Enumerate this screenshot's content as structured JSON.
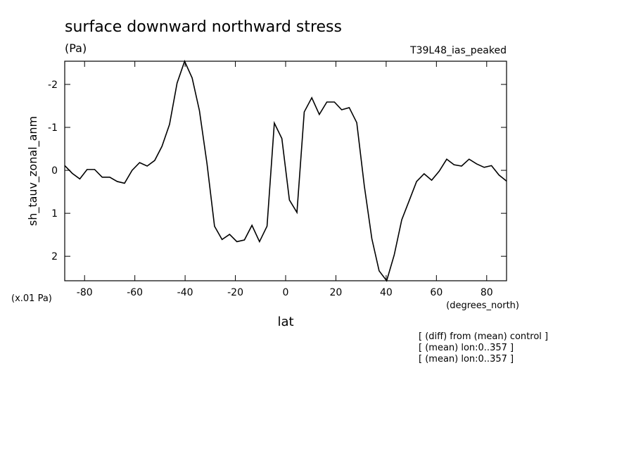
{
  "chart_data": {
    "type": "line",
    "title": "surface downward northward stress",
    "units": "(Pa)",
    "dataset": "T39L48_ias_peaked",
    "ylabel": "sh_tauv_zonal_anm",
    "yunits": "(x.01 Pa)",
    "xunits": "(degrees_north)",
    "xlabel": "lat",
    "notes": [
      "[ (diff) from (mean) control ]",
      "[ (mean) lon:0..357 ]",
      "[ (mean) lon:0..357 ]"
    ],
    "x": [
      -87.9,
      -84.9,
      -81.9,
      -79.0,
      -76.0,
      -73.0,
      -70.0,
      -67.0,
      -64.1,
      -61.1,
      -58.1,
      -55.1,
      -52.1,
      -49.2,
      -46.2,
      -43.2,
      -40.2,
      -37.2,
      -34.3,
      -31.3,
      -28.3,
      -25.3,
      -22.3,
      -19.4,
      -16.4,
      -13.4,
      -10.4,
      -7.4,
      -4.5,
      -1.5,
      1.5,
      4.5,
      7.4,
      10.4,
      13.4,
      16.4,
      19.4,
      22.3,
      25.3,
      28.3,
      31.3,
      34.3,
      37.2,
      40.2,
      43.2,
      46.2,
      49.2,
      52.1,
      55.1,
      58.1,
      61.1,
      64.1,
      67.0,
      70.0,
      73.0,
      76.0,
      79.0,
      81.9,
      84.9,
      87.9
    ],
    "series": [
      {
        "color": "#000000",
        "values": [
          -0.11,
          0.07,
          0.2,
          -0.02,
          -0.02,
          0.16,
          0.16,
          0.26,
          0.3,
          0,
          -0.18,
          -0.1,
          -0.23,
          -0.56,
          -1.07,
          -2.03,
          -2.54,
          -2.15,
          -1.39,
          -0.16,
          1.3,
          1.61,
          1.49,
          1.66,
          1.62,
          1.28,
          1.66,
          1.3,
          -1.1,
          -0.74,
          0.69,
          0.98,
          -1.36,
          -1.69,
          -1.3,
          -1.59,
          -1.59,
          -1.41,
          -1.46,
          -1.11,
          0.36,
          1.59,
          2.34,
          2.57,
          1.97,
          1.15,
          0.7,
          0.26,
          0.08,
          0.23,
          0.02,
          -0.26,
          -0.13,
          -0.1,
          -0.26,
          -0.15,
          -0.07,
          -0.11,
          0.11,
          0.25
        ]
      }
    ],
    "xlim": [
      -87.9,
      87.9
    ],
    "xticks": [
      -80,
      -60,
      -40,
      -20,
      0,
      20,
      40,
      60,
      80
    ],
    "ylim": [
      2.57,
      -2.54
    ],
    "yticks": [
      -2,
      -1,
      0,
      1,
      2
    ]
  }
}
